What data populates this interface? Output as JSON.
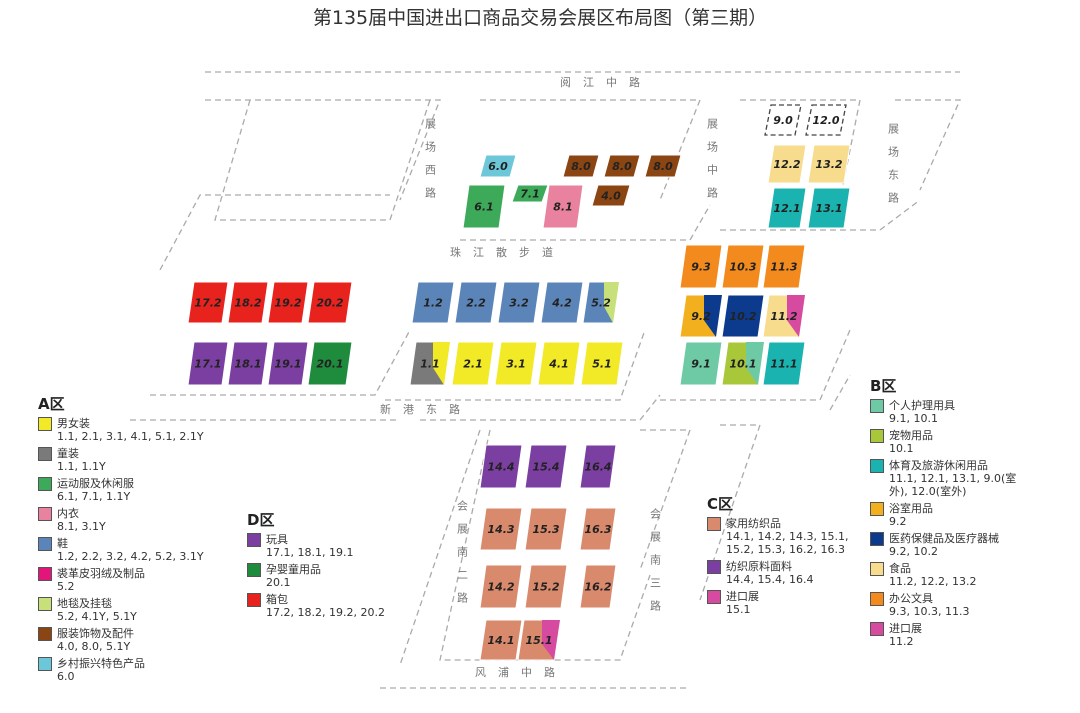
{
  "title": "第135届中国进出口商品交易会展区布局图（第三期）",
  "roads": [
    "阅江中路",
    "展场西路",
    "展场中路",
    "展场东路",
    "珠江散步道",
    "新港东路",
    "会展南二路",
    "会展南三路",
    "风浦中路"
  ],
  "halls": [
    {
      "label": "6.0",
      "color": "#6cc8d8"
    },
    {
      "label": "8.0",
      "color": "#8b4513"
    },
    {
      "label": "8.0",
      "color": "#8b4513"
    },
    {
      "label": "8.0",
      "color": "#8b4513"
    },
    {
      "label": "6.1",
      "color": "#3daa5a"
    },
    {
      "label": "7.1",
      "color": "#3daa5a"
    },
    {
      "label": "8.1",
      "color": "#e9829e"
    },
    {
      "label": "4.0",
      "color": "#8b4513"
    },
    {
      "label": "9.0",
      "outdoor": true
    },
    {
      "label": "12.0",
      "outdoor": true
    },
    {
      "label": "12.2",
      "color": "#f6dc8c"
    },
    {
      "label": "13.2",
      "color": "#f6dc8c"
    },
    {
      "label": "12.1",
      "color": "#1ab3b0"
    },
    {
      "label": "13.1",
      "color": "#1ab3b0"
    },
    {
      "label": "9.3",
      "color": "#f28a1e"
    },
    {
      "label": "10.3",
      "color": "#f28a1e"
    },
    {
      "label": "11.3",
      "color": "#f28a1e"
    },
    {
      "label": "9.2",
      "color": "#f2b01e",
      "color2": "#0c3a8c"
    },
    {
      "label": "10.2",
      "color": "#0c3a8c"
    },
    {
      "label": "11.2",
      "color": "#f6dc8c",
      "color2": "#d64aa0"
    },
    {
      "label": "9.1",
      "color": "#6ecaa5"
    },
    {
      "label": "10.1",
      "color": "#a8c83a",
      "color2": "#6ecaa5"
    },
    {
      "label": "11.1",
      "color": "#1ab3b0"
    },
    {
      "label": "17.2",
      "color": "#e8231e"
    },
    {
      "label": "18.2",
      "color": "#e8231e"
    },
    {
      "label": "19.2",
      "color": "#e8231e"
    },
    {
      "label": "20.2",
      "color": "#e8231e"
    },
    {
      "label": "17.1",
      "color": "#7a3fa0"
    },
    {
      "label": "18.1",
      "color": "#7a3fa0"
    },
    {
      "label": "19.1",
      "color": "#7a3fa0"
    },
    {
      "label": "20.1",
      "color": "#1e8c3c"
    },
    {
      "label": "1.2",
      "color": "#5b85b8"
    },
    {
      "label": "2.2",
      "color": "#5b85b8"
    },
    {
      "label": "3.2",
      "color": "#5b85b8"
    },
    {
      "label": "4.2",
      "color": "#5b85b8"
    },
    {
      "label": "5.2",
      "color": "#5b85b8",
      "color2": "#c8e07a"
    },
    {
      "label": "1.1",
      "color": "#7a7a7a",
      "color2": "#f2e927"
    },
    {
      "label": "2.1",
      "color": "#f2e927"
    },
    {
      "label": "3.1",
      "color": "#f2e927"
    },
    {
      "label": "4.1",
      "color": "#f2e927"
    },
    {
      "label": "5.1",
      "color": "#f2e927"
    },
    {
      "label": "14.4",
      "color": "#7a3fa0"
    },
    {
      "label": "15.4",
      "color": "#7a3fa0"
    },
    {
      "label": "16.4",
      "color": "#7a3fa0"
    },
    {
      "label": "14.3",
      "color": "#d98a6c"
    },
    {
      "label": "15.3",
      "color": "#d98a6c"
    },
    {
      "label": "16.3",
      "color": "#d98a6c"
    },
    {
      "label": "14.2",
      "color": "#d98a6c"
    },
    {
      "label": "15.2",
      "color": "#d98a6c"
    },
    {
      "label": "16.2",
      "color": "#d98a6c"
    },
    {
      "label": "14.1",
      "color": "#d98a6c"
    },
    {
      "label": "15.1",
      "color": "#d98a6c",
      "color2": "#d64aa0"
    }
  ],
  "legends": [
    {
      "title": "A区",
      "items": [
        {
          "name": "男女装",
          "halls": "1.1, 2.1, 3.1, 4.1, 5.1, 2.1Y",
          "color": "#f2e927"
        },
        {
          "name": "童装",
          "halls": "1.1, 1.1Y",
          "color": "#7a7a7a"
        },
        {
          "name": "运动服及休闲服",
          "halls": "6.1, 7.1, 1.1Y",
          "color": "#3daa5a"
        },
        {
          "name": "内衣",
          "halls": "8.1, 3.1Y",
          "color": "#e9829e"
        },
        {
          "name": "鞋",
          "halls": "1.2, 2.2, 3.2, 4.2, 5.2, 3.1Y",
          "color": "#5b85b8"
        },
        {
          "name": "裘革皮羽绒及制品",
          "halls": "5.2",
          "color": "#e3157a"
        },
        {
          "name": "地毯及挂毯",
          "halls": "5.2, 4.1Y, 5.1Y",
          "color": "#c8e07a"
        },
        {
          "name": "服装饰物及配件",
          "halls": "4.0, 8.0, 5.1Y",
          "color": "#8b4513"
        },
        {
          "name": "乡村振兴特色产品",
          "halls": "6.0",
          "color": "#6cc8d8"
        }
      ]
    },
    {
      "title": "D区",
      "items": [
        {
          "name": "玩具",
          "halls": "17.1, 18.1, 19.1",
          "color": "#7a3fa0"
        },
        {
          "name": "孕婴童用品",
          "halls": "20.1",
          "color": "#1e8c3c"
        },
        {
          "name": "箱包",
          "halls": "17.2, 18.2, 19.2, 20.2",
          "color": "#e8231e"
        }
      ]
    },
    {
      "title": "C区",
      "items": [
        {
          "name": "家用纺织品",
          "halls": "14.1, 14.2, 14.3, 15.1, 15.2, 15.3, 16.2, 16.3",
          "color": "#d98a6c"
        },
        {
          "name": "纺织原料面料",
          "halls": "14.4, 15.4, 16.4",
          "color": "#7a3fa0"
        },
        {
          "name": "进口展",
          "halls": "15.1",
          "color": "#d64aa0"
        }
      ]
    },
    {
      "title": "B区",
      "items": [
        {
          "name": "个人护理用具",
          "halls": "9.1, 10.1",
          "color": "#6ecaa5"
        },
        {
          "name": "宠物用品",
          "halls": "10.1",
          "color": "#a8c83a"
        },
        {
          "name": "体育及旅游休闲用品",
          "halls": "11.1, 12.1, 13.1, 9.0(室外), 12.0(室外)",
          "color": "#1ab3b0"
        },
        {
          "name": "浴室用品",
          "halls": "9.2",
          "color": "#f2b01e"
        },
        {
          "name": "医药保健品及医疗器械",
          "halls": "9.2, 10.2",
          "color": "#0c3a8c"
        },
        {
          "name": "食品",
          "halls": "11.2, 12.2, 13.2",
          "color": "#f6dc8c"
        },
        {
          "name": "办公文具",
          "halls": "9.3, 10.3, 11.3",
          "color": "#f28a1e"
        },
        {
          "name": "进口展",
          "halls": "11.2",
          "color": "#d64aa0"
        }
      ]
    }
  ]
}
